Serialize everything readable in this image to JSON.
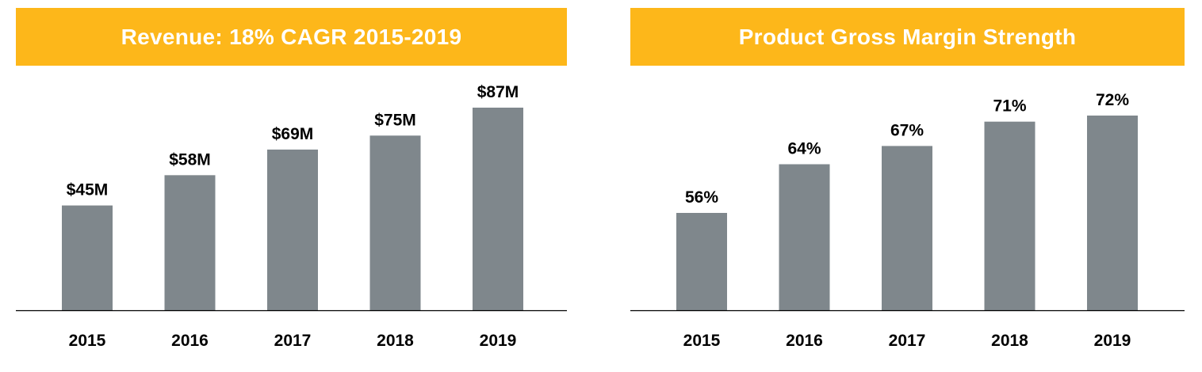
{
  "chart_data": [
    {
      "type": "bar",
      "title": "Revenue: 18% CAGR 2015-2019",
      "categories": [
        "2015",
        "2016",
        "2017",
        "2018",
        "2019"
      ],
      "values": [
        45,
        58,
        69,
        75,
        87
      ],
      "value_labels": [
        "$45M",
        "$58M",
        "$69M",
        "$75M",
        "$87M"
      ],
      "ylim": [
        0,
        100
      ],
      "xlabel": "",
      "ylabel": "",
      "color": "#7F878C",
      "banner_color": "#FDB71A"
    },
    {
      "type": "bar",
      "title": "Product Gross Margin Strength",
      "categories": [
        "2015",
        "2016",
        "2017",
        "2018",
        "2019"
      ],
      "values": [
        56,
        64,
        67,
        71,
        72
      ],
      "value_labels": [
        "56%",
        "64%",
        "67%",
        "71%",
        "72%"
      ],
      "ylim": [
        40,
        80
      ],
      "xlabel": "",
      "ylabel": "",
      "color": "#7F878C",
      "banner_color": "#FDB71A"
    }
  ]
}
